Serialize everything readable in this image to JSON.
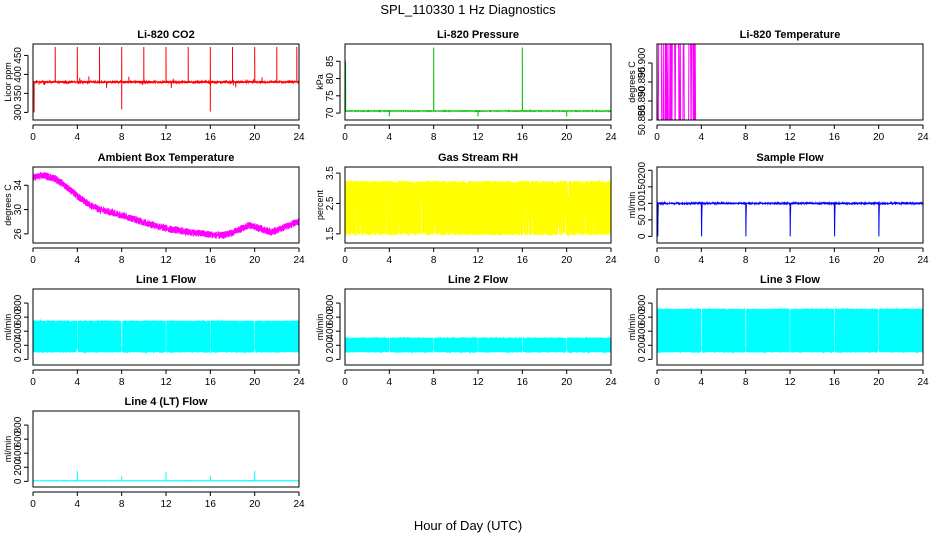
{
  "page": {
    "title": "SPL_110330  1 Hz Diagnostics",
    "xcaption": "Hour of Day (UTC)"
  },
  "chart_data": [
    {
      "id": "co2",
      "type": "line",
      "title": "Li-820 CO2",
      "ylabel": "Licor ppm",
      "color": "#ff0000",
      "xlim": [
        0,
        24
      ],
      "ylim": [
        280,
        480
      ],
      "xticks": [
        0,
        4,
        8,
        12,
        16,
        20,
        24
      ],
      "yticks": [
        300,
        350,
        400,
        450
      ],
      "pattern": "baseline_spikes",
      "baseline": 380,
      "noise": 8,
      "events": [
        {
          "x": 0.1,
          "y": 300
        },
        {
          "x": 2.0,
          "y": 472
        },
        {
          "x": 4.0,
          "y": 472
        },
        {
          "x": 6.0,
          "y": 472
        },
        {
          "x": 8.0,
          "y": 472
        },
        {
          "x": 8.0,
          "y": 308
        },
        {
          "x": 10.0,
          "y": 472
        },
        {
          "x": 12.0,
          "y": 472
        },
        {
          "x": 14.0,
          "y": 472
        },
        {
          "x": 16.0,
          "y": 472
        },
        {
          "x": 16.0,
          "y": 302
        },
        {
          "x": 18.0,
          "y": 472
        },
        {
          "x": 20.0,
          "y": 472
        },
        {
          "x": 22.0,
          "y": 472
        },
        {
          "x": 23.8,
          "y": 472
        }
      ]
    },
    {
      "id": "pressure",
      "type": "line",
      "title": "Li-820 Pressure",
      "ylabel": "kPa",
      "color": "#00bb00",
      "xlim": [
        0,
        24
      ],
      "ylim": [
        68,
        90
      ],
      "xticks": [
        0,
        4,
        8,
        12,
        16,
        20,
        24
      ],
      "yticks": [
        70,
        75,
        80,
        85
      ],
      "pattern": "baseline_spikes",
      "baseline": 70.6,
      "noise": 0.25,
      "events": [
        {
          "x": 0.05,
          "y": 85
        },
        {
          "x": 4.0,
          "y": 69
        },
        {
          "x": 8.0,
          "y": 89
        },
        {
          "x": 12.0,
          "y": 69
        },
        {
          "x": 16.0,
          "y": 89
        },
        {
          "x": 20.0,
          "y": 69
        },
        {
          "x": 24.0,
          "y": 89
        }
      ]
    },
    {
      "id": "temperature",
      "type": "line",
      "title": "Li-820 Temperature",
      "ylabel": "degrees C",
      "color": "#ff00ff",
      "xlim": [
        0,
        24
      ],
      "ylim": [
        50.885,
        50.905
      ],
      "xticks": [
        0,
        4,
        8,
        12,
        16,
        20,
        24
      ],
      "yticks": [
        50.885,
        50.89,
        50.895,
        50.9
      ],
      "yticklabels": [
        "50.885",
        "50.890",
        "50.895",
        "50.900"
      ],
      "pattern": "toggle",
      "low": 50.885,
      "high": 50.905,
      "toggle_until": 3.6
    },
    {
      "id": "ambient",
      "type": "line",
      "title": "Ambient Box Temperature",
      "ylabel": "degrees C",
      "color": "#ff00ff",
      "xlim": [
        0,
        24
      ],
      "ylim": [
        24.5,
        37
      ],
      "xticks": [
        0,
        4,
        8,
        12,
        16,
        20,
        24
      ],
      "yticks": [
        26,
        30,
        34
      ],
      "pattern": "curve",
      "noise": 0.6,
      "curve": [
        [
          0,
          35.3
        ],
        [
          1,
          35.6
        ],
        [
          2,
          35.1
        ],
        [
          3,
          33.8
        ],
        [
          4,
          32.2
        ],
        [
          5,
          30.9
        ],
        [
          6,
          30.0
        ],
        [
          8,
          29.1
        ],
        [
          10,
          27.9
        ],
        [
          12,
          26.9
        ],
        [
          14,
          26.3
        ],
        [
          16,
          25.9
        ],
        [
          17,
          25.7
        ],
        [
          18,
          26.2
        ],
        [
          19,
          27.0
        ],
        [
          19.5,
          27.4
        ],
        [
          20.5,
          26.9
        ],
        [
          21.5,
          26.3
        ],
        [
          22.5,
          26.9
        ],
        [
          23.5,
          27.7
        ],
        [
          24,
          28.0
        ]
      ]
    },
    {
      "id": "rh",
      "type": "line",
      "title": "Gas Stream RH",
      "ylabel": "percent",
      "color": "#ffff00",
      "xlim": [
        0,
        24
      ],
      "ylim": [
        1.2,
        3.7
      ],
      "xticks": [
        0,
        4,
        8,
        12,
        16,
        20,
        24
      ],
      "yticks": [
        1.5,
        2.5,
        3.5
      ],
      "pattern": "band",
      "top": 3.25,
      "bottom": 1.45,
      "core": 2.3
    },
    {
      "id": "sample",
      "type": "line",
      "title": "Sample Flow",
      "ylabel": "ml/min",
      "color": "#0000ff",
      "xlim": [
        0,
        24
      ],
      "ylim": [
        -20,
        210
      ],
      "xticks": [
        0,
        4,
        8,
        12,
        16,
        20,
        24
      ],
      "yticks": [
        0,
        50,
        100,
        150,
        200
      ],
      "pattern": "baseline_dips",
      "baseline": 100,
      "noise": 4,
      "dips": [
        0.05,
        4,
        8,
        12,
        16,
        20,
        24
      ],
      "dip_to": 0
    },
    {
      "id": "line1",
      "type": "line",
      "title": "Line 1 Flow",
      "ylabel": "ml/min",
      "color": "#00ffff",
      "xlim": [
        0,
        24
      ],
      "ylim": [
        -80,
        1000
      ],
      "xticks": [
        0,
        4,
        8,
        12,
        16,
        20,
        24
      ],
      "yticks": [
        0,
        200,
        400,
        600,
        800
      ],
      "pattern": "pulsed",
      "high": 540,
      "low": 100,
      "gaps": [
        4,
        8,
        12,
        16,
        20
      ]
    },
    {
      "id": "line2",
      "type": "line",
      "title": "Line 2 Flow",
      "ylabel": "ml/min",
      "color": "#00ffff",
      "xlim": [
        0,
        24
      ],
      "ylim": [
        -80,
        1000
      ],
      "xticks": [
        0,
        4,
        8,
        12,
        16,
        20,
        24
      ],
      "yticks": [
        0,
        200,
        400,
        600,
        800
      ],
      "pattern": "pulsed",
      "high": 300,
      "low": 100,
      "gaps": [
        4,
        8,
        12,
        16,
        20
      ]
    },
    {
      "id": "line3",
      "type": "line",
      "title": "Line 3 Flow",
      "ylabel": "ml/min",
      "color": "#00ffff",
      "xlim": [
        0,
        24
      ],
      "ylim": [
        -80,
        1000
      ],
      "xticks": [
        0,
        4,
        8,
        12,
        16,
        20,
        24
      ],
      "yticks": [
        0,
        200,
        400,
        600,
        800
      ],
      "pattern": "pulsed",
      "high": 710,
      "low": 100,
      "gaps": [
        4,
        8,
        12,
        16,
        20
      ]
    },
    {
      "id": "line4",
      "type": "line",
      "title": "Line 4 (LT) Flow",
      "ylabel": "ml/min",
      "color": "#00ffff",
      "xlim": [
        0,
        24
      ],
      "ylim": [
        -80,
        1000
      ],
      "xticks": [
        0,
        4,
        8,
        12,
        16,
        20,
        24
      ],
      "yticks": [
        0,
        200,
        400,
        600,
        800
      ],
      "pattern": "baseline_spikes",
      "baseline": 8,
      "noise": 6,
      "events": [
        {
          "x": 4.0,
          "y": 150
        },
        {
          "x": 8.0,
          "y": 70
        },
        {
          "x": 12.0,
          "y": 130
        },
        {
          "x": 16.0,
          "y": 80
        },
        {
          "x": 20.0,
          "y": 150
        },
        {
          "x": 24.0,
          "y": 90
        }
      ]
    }
  ]
}
